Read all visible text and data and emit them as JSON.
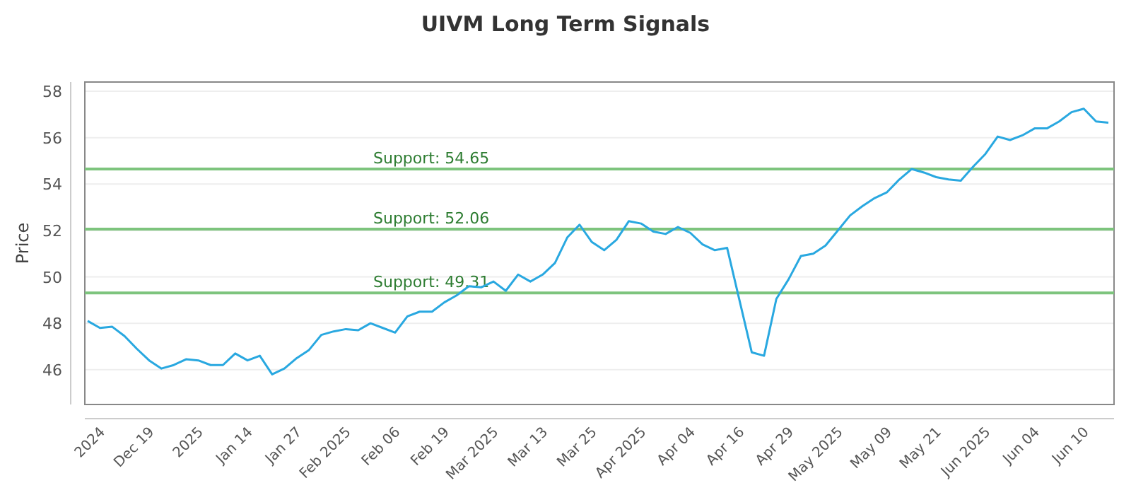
{
  "chart_data": {
    "type": "line",
    "title": "UIVM Long Term Signals",
    "ylabel": "Price",
    "categories": [
      null,
      "2024",
      null,
      null,
      null,
      "Dec 19",
      null,
      null,
      null,
      "2025",
      null,
      null,
      null,
      "Jan 14",
      null,
      null,
      null,
      "Jan 27",
      null,
      null,
      null,
      "Feb 2025",
      null,
      null,
      null,
      "Feb 06",
      null,
      null,
      null,
      "Feb 19",
      null,
      null,
      null,
      "Mar 2025",
      null,
      null,
      null,
      "Mar 13",
      null,
      null,
      null,
      "Mar 25",
      null,
      null,
      null,
      "Apr 2025",
      null,
      null,
      null,
      "Apr 04",
      null,
      null,
      null,
      "Apr 16",
      null,
      null,
      null,
      "Apr 29",
      null,
      null,
      null,
      "May 2025",
      null,
      null,
      null,
      "May 09",
      null,
      null,
      null,
      "May 21",
      null,
      null,
      null,
      "Jun 2025",
      null,
      null,
      null,
      "Jun 04",
      null,
      null,
      null,
      "Jun 10",
      null,
      null
    ],
    "series": [
      {
        "color": "#29a8e0",
        "values": [
          48.1,
          47.8,
          47.85,
          47.45,
          46.9,
          46.4,
          46.05,
          46.2,
          46.45,
          46.4,
          46.2,
          46.2,
          46.7,
          46.4,
          46.6,
          45.8,
          46.05,
          46.5,
          46.85,
          47.5,
          47.65,
          47.75,
          47.7,
          48.0,
          47.8,
          47.6,
          48.3,
          48.5,
          48.5,
          48.9,
          49.2,
          49.6,
          49.55,
          49.8,
          49.4,
          50.1,
          49.8,
          50.1,
          50.6,
          51.7,
          52.25,
          51.5,
          51.15,
          51.6,
          52.4,
          52.3,
          51.95,
          51.85,
          52.15,
          51.9,
          51.4,
          51.15,
          51.25,
          49.0,
          46.75,
          46.6,
          49.05,
          49.9,
          50.9,
          51.0,
          51.35,
          52.0,
          52.65,
          53.05,
          53.4,
          53.65,
          54.2,
          54.65,
          54.5,
          54.3,
          54.2,
          54.15,
          54.75,
          55.3,
          56.05,
          55.9,
          56.1,
          56.4,
          56.4,
          56.7,
          57.1,
          57.25,
          56.7,
          56.65
        ]
      }
    ],
    "ylim": [
      44.5,
      58.4
    ],
    "yticks": [
      46,
      48,
      50,
      52,
      54,
      56,
      58
    ],
    "grid": "y",
    "ref_lines": [
      {
        "axis": "y",
        "value": 54.65,
        "label": "Support: 54.65",
        "color": "#7dc47d"
      },
      {
        "axis": "y",
        "value": 52.06,
        "label": "Support: 52.06",
        "color": "#7dc47d"
      },
      {
        "axis": "y",
        "value": 49.31,
        "label": "Support: 49.31",
        "color": "#7dc47d"
      }
    ]
  }
}
